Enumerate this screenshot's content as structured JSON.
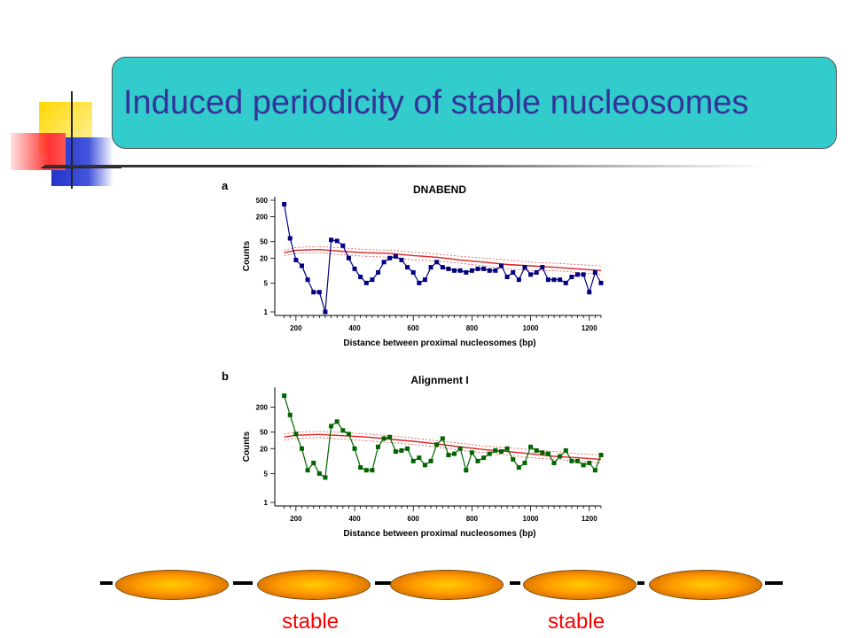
{
  "slide": {
    "title": "Induced periodicity of stable nucleosomes",
    "title_color": "#333399",
    "title_box_color": "#33cccc",
    "labels": [
      "stable",
      "stable"
    ],
    "label_color": "#ff0000"
  },
  "chart_data": [
    {
      "type": "line",
      "panel": "a",
      "title": "DNABEND",
      "xlabel": "Distance between proximal nucleosomes (bp)",
      "ylabel": "Counts",
      "xlim": [
        140,
        1240
      ],
      "ylim": [
        1,
        500
      ],
      "yscale": "log",
      "xticks": [
        200,
        400,
        600,
        800,
        1000,
        1200
      ],
      "yticks": [
        1,
        5,
        20,
        50,
        200,
        500
      ],
      "series_color": "#000080",
      "x": [
        160,
        180,
        200,
        220,
        240,
        260,
        280,
        300,
        320,
        340,
        360,
        380,
        400,
        420,
        440,
        460,
        480,
        500,
        520,
        540,
        560,
        580,
        600,
        620,
        640,
        660,
        680,
        700,
        720,
        740,
        760,
        780,
        800,
        820,
        840,
        860,
        880,
        900,
        920,
        940,
        960,
        980,
        1000,
        1020,
        1040,
        1060,
        1080,
        1100,
        1120,
        1140,
        1160,
        1180,
        1200,
        1220,
        1240
      ],
      "values": [
        400,
        60,
        18,
        13,
        6,
        3,
        3,
        1,
        55,
        52,
        40,
        20,
        11,
        7,
        5,
        6,
        9,
        16,
        20,
        22,
        18,
        12,
        9,
        5,
        6,
        12,
        16,
        12,
        11,
        10,
        10,
        9,
        10,
        11,
        11,
        10,
        10,
        13,
        7,
        9,
        6,
        12,
        8,
        9,
        12,
        6,
        6,
        6,
        5,
        7,
        8,
        8,
        3,
        9,
        5
      ],
      "bands": {
        "x": [
          160,
          200,
          280,
          360,
          440,
          520,
          600,
          680,
          760,
          840,
          920,
          1000,
          1080,
          1160,
          1240
        ],
        "mean": [
          27,
          31,
          32,
          29,
          27,
          26,
          23,
          21,
          18,
          16,
          14,
          13,
          12,
          11,
          10
        ],
        "upper": [
          31,
          36,
          38,
          35,
          32,
          31,
          28,
          25,
          22,
          20,
          18,
          16,
          15,
          14,
          13
        ],
        "lower": [
          23,
          26,
          27,
          24,
          22,
          21,
          18,
          17,
          15,
          13,
          11,
          10,
          10,
          9,
          8
        ]
      }
    },
    {
      "type": "line",
      "panel": "b",
      "title": "Alignment I",
      "xlabel": "Distance between proximal nucleosomes (bp)",
      "ylabel": "Counts",
      "xlim": [
        140,
        1240
      ],
      "ylim": [
        1,
        500
      ],
      "yscale": "log",
      "xticks": [
        200,
        400,
        600,
        800,
        1000,
        1200
      ],
      "yticks": [
        1,
        5,
        20,
        50,
        200
      ],
      "series_color": "#006400",
      "x": [
        160,
        180,
        200,
        220,
        240,
        260,
        280,
        300,
        320,
        340,
        360,
        380,
        400,
        420,
        440,
        460,
        480,
        500,
        520,
        540,
        560,
        580,
        600,
        620,
        640,
        660,
        680,
        700,
        720,
        740,
        760,
        780,
        800,
        820,
        840,
        860,
        880,
        900,
        920,
        940,
        960,
        980,
        1000,
        1020,
        1040,
        1060,
        1080,
        1100,
        1120,
        1140,
        1160,
        1180,
        1200,
        1220,
        1240
      ],
      "values": [
        380,
        130,
        45,
        20,
        6,
        9,
        5,
        4,
        70,
        90,
        55,
        45,
        20,
        7,
        6,
        6,
        22,
        35,
        38,
        17,
        18,
        20,
        10,
        12,
        8,
        10,
        25,
        35,
        14,
        15,
        20,
        6,
        16,
        10,
        12,
        15,
        18,
        17,
        20,
        11,
        7,
        9,
        22,
        18,
        16,
        15,
        9,
        13,
        18,
        10,
        10,
        8,
        9,
        6,
        14
      ],
      "bands": {
        "x": [
          160,
          200,
          280,
          360,
          440,
          520,
          600,
          680,
          760,
          840,
          920,
          1000,
          1080,
          1160,
          1240
        ],
        "mean": [
          38,
          42,
          44,
          41,
          38,
          34,
          30,
          26,
          22,
          19,
          17,
          15,
          13,
          12,
          11
        ],
        "upper": [
          45,
          50,
          52,
          49,
          45,
          41,
          36,
          31,
          27,
          23,
          21,
          19,
          17,
          15,
          14
        ],
        "lower": [
          32,
          35,
          37,
          34,
          31,
          28,
          25,
          22,
          18,
          16,
          14,
          12,
          11,
          10,
          9
        ]
      }
    }
  ]
}
